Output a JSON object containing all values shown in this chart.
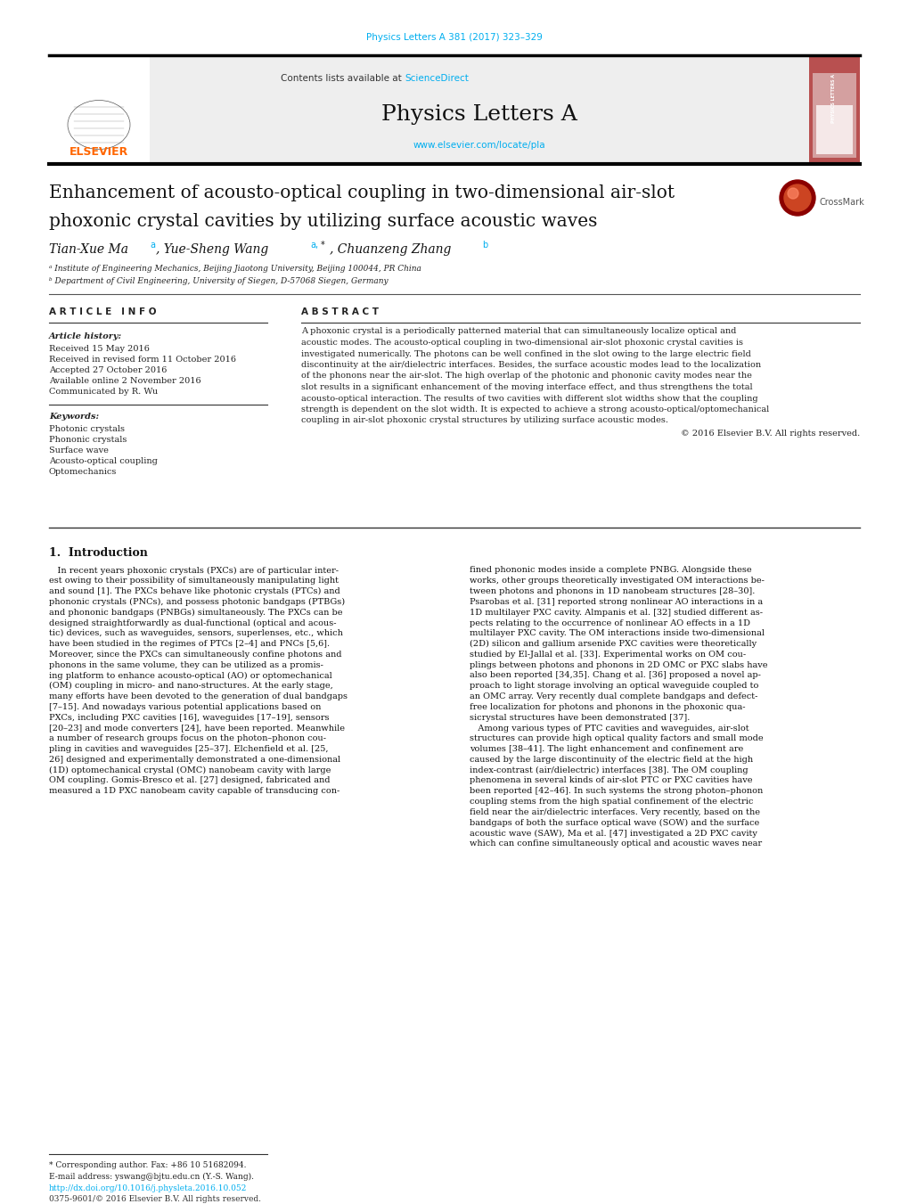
{
  "page_width": 10.2,
  "page_height": 13.51,
  "bg_color": "#ffffff",
  "journal_ref": "Physics Letters A 381 (2017) 323–329",
  "journal_ref_color": "#00AEEF",
  "header_bg": "#eeeeee",
  "science_direct_color": "#00AEEF",
  "journal_title": "Physics Letters A",
  "journal_url": "www.elsevier.com/locate/pla",
  "elsevier_color": "#FF6600",
  "spine_bg": "#b85050",
  "spine_text": "PHYSICS LETTERS A",
  "paper_title_line1": "Enhancement of acousto-optical coupling in two-dimensional air-slot",
  "paper_title_line2": "phoxonic crystal cavities by utilizing surface acoustic waves",
  "affil_a": "ᵃ Institute of Engineering Mechanics, Beijing Jiaotong University, Beijing 100044, PR China",
  "affil_b": "ᵇ Department of Civil Engineering, University of Siegen, D-57068 Siegen, Germany",
  "article_info_title": "A R T I C L E   I N F O",
  "abstract_title": "A B S T R A C T",
  "article_history_title": "Article history:",
  "received": "Received 15 May 2016",
  "received_revised": "Received in revised form 11 October 2016",
  "accepted": "Accepted 27 October 2016",
  "available": "Available online 2 November 2016",
  "communicated": "Communicated by R. Wu",
  "keywords_title": "Keywords:",
  "keyword1": "Photonic crystals",
  "keyword2": "Phononic crystals",
  "keyword3": "Surface wave",
  "keyword4": "Acousto-optical coupling",
  "keyword5": "Optomechanics",
  "copyright": "© 2016 Elsevier B.V. All rights reserved.",
  "intro_heading": "1.  Introduction",
  "footnote1": "* Corresponding author. Fax: +86 10 51682094.",
  "footnote2": "E-mail address: yswang@bjtu.edu.cn (Y.-S. Wang).",
  "doi_text": "http://dx.doi.org/10.1016/j.physleta.2016.10.052",
  "issn_text": "0375-9601/© 2016 Elsevier B.V. All rights reserved."
}
